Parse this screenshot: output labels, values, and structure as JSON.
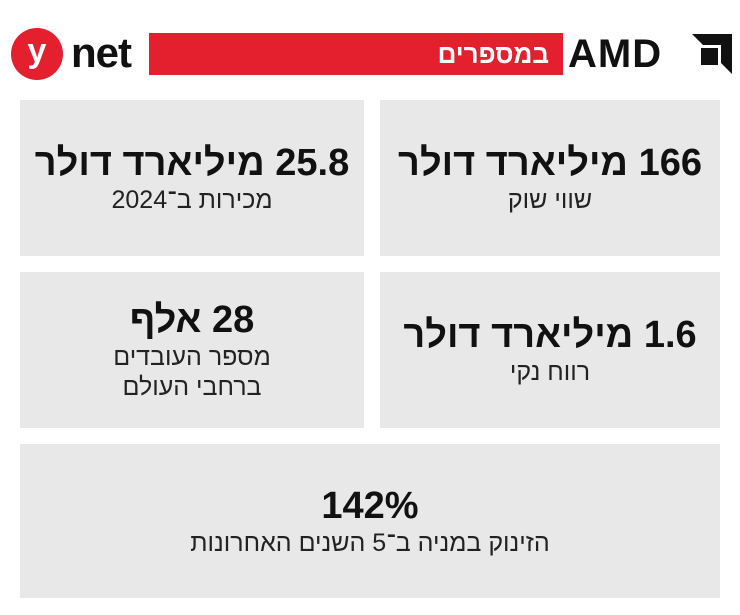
{
  "header": {
    "ynet_letter": "y",
    "ynet_word": "net",
    "title": "במספרים",
    "amd_word": "AMD"
  },
  "colors": {
    "accent": "#e4202e",
    "card_bg": "#e8e8e8",
    "text": "#111111"
  },
  "stats": [
    {
      "value": "166 מיליארד דולר",
      "label": "שווי שוק"
    },
    {
      "value": "25.8 מיליארד דולר",
      "label": "מכירות ב־2024"
    },
    {
      "value": "1.6 מיליארד דולר",
      "label": "רווח נקי"
    },
    {
      "value": "28 אלף",
      "label": "מספר העובדים",
      "label2": "ברחבי העולם"
    },
    {
      "value": "142%",
      "label": "הזינוק במניה ב־5 השנים האחרונות"
    }
  ]
}
